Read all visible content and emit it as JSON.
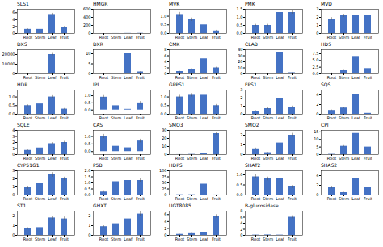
{
  "chart_data": [
    {
      "type": "bar",
      "title": "SLS1",
      "categories": [
        "Root",
        "Stem",
        "Leaf",
        "Fruit"
      ],
      "values": [
        1.2,
        1.2,
        5.5,
        1.8
      ],
      "errors": [
        0.15,
        0.15,
        0.35,
        0.25
      ],
      "color": "#4472c4",
      "ylim": [
        0,
        7
      ],
      "yticks": [
        0,
        2,
        4,
        6
      ],
      "grid": false
    },
    {
      "type": "bar",
      "title": "HMGR",
      "categories": [
        "Root",
        "Stem",
        "Leaf",
        "Fruit"
      ],
      "values": [
        0.05,
        1.0,
        3.2,
        5.0
      ],
      "errors": [
        0.02,
        0.12,
        0.25,
        0.35
      ],
      "color": "#4472c4",
      "ylim": [
        0,
        600
      ],
      "yticks": [
        0,
        200,
        400,
        600
      ],
      "grid": false
    },
    {
      "type": "bar",
      "title": "MVK",
      "categories": [
        "Root",
        "Stem",
        "Leaf",
        "Fruit"
      ],
      "values": [
        1.1,
        0.8,
        0.5,
        0.15
      ],
      "errors": [
        0.12,
        0.1,
        0.06,
        0.04
      ],
      "color": "#4472c4",
      "ylim": [
        0,
        1.4
      ],
      "yticks": [
        {
          "value": 0,
          "label": "0.0"
        },
        0.5,
        {
          "value": 1,
          "label": "1.0"
        }
      ],
      "grid": false
    },
    {
      "type": "bar",
      "title": "PMK",
      "categories": [
        "Root",
        "Stem",
        "Leaf",
        "Fruit"
      ],
      "values": [
        0.5,
        0.5,
        1.3,
        1.3
      ],
      "errors": [
        0.07,
        0.07,
        0.1,
        0.1
      ],
      "color": "#4472c4",
      "ylim": [
        0,
        1.5
      ],
      "yticks": [
        {
          "value": 0,
          "label": "0.0"
        },
        0.5,
        {
          "value": 1,
          "label": "1.0"
        },
        1.5
      ],
      "grid": false
    },
    {
      "type": "bar",
      "title": "MVD",
      "categories": [
        "Root",
        "Stem",
        "Leaf",
        "Fruit"
      ],
      "values": [
        1.8,
        2.2,
        2.3,
        2.3
      ],
      "errors": [
        0.18,
        0.2,
        0.2,
        0.2
      ],
      "color": "#4472c4",
      "ylim": [
        0,
        3
      ],
      "yticks": [
        0,
        1,
        2,
        3
      ],
      "grid": false
    },
    {
      "type": "bar",
      "title": "DXS",
      "categories": [
        "Root",
        "Stem",
        "Leaf",
        "Fruit"
      ],
      "values": [
        50,
        800,
        20000,
        500
      ],
      "errors": [
        5,
        80,
        1200,
        50
      ],
      "color": "#4472c4",
      "ylim": [
        0,
        25000
      ],
      "yticks": [
        0,
        10000,
        20000
      ],
      "grid": false
    },
    {
      "type": "bar",
      "title": "DXR",
      "categories": [
        "Root",
        "Stem",
        "Leaf",
        "Fruit"
      ],
      "values": [
        0.3,
        0.4,
        10.0,
        1.0
      ],
      "errors": [
        0.05,
        0.06,
        0.7,
        0.15
      ],
      "color": "#4472c4",
      "ylim": [
        0,
        12
      ],
      "yticks": [
        0,
        5,
        10
      ],
      "grid": false
    },
    {
      "type": "bar",
      "title": "CMK",
      "categories": [
        "Root",
        "Stem",
        "Leaf",
        "Fruit"
      ],
      "values": [
        0.8,
        1.5,
        5.0,
        2.0
      ],
      "errors": [
        0.1,
        0.2,
        0.4,
        0.25
      ],
      "color": "#4472c4",
      "ylim": [
        0,
        8
      ],
      "yticks": [
        0,
        2,
        4,
        6,
        8
      ],
      "grid": false
    },
    {
      "type": "bar",
      "title": "CLAB",
      "categories": [
        "Root",
        "Stem",
        "Leaf",
        "Fruit"
      ],
      "values": [
        0.2,
        0.2,
        35.0,
        2.0
      ],
      "errors": [
        0.03,
        0.03,
        2.5,
        0.2
      ],
      "color": "#4472c4",
      "ylim": [
        0,
        40
      ],
      "yticks": [
        0,
        10,
        20,
        30,
        40
      ],
      "grid": false
    },
    {
      "type": "bar",
      "title": "HDS",
      "categories": [
        "Root",
        "Stem",
        "Leaf",
        "Fruit"
      ],
      "values": [
        0.3,
        1.2,
        6.5,
        2.0
      ],
      "errors": [
        0.05,
        0.15,
        0.55,
        0.2
      ],
      "color": "#4472c4",
      "ylim": [
        0,
        9
      ],
      "yticks": [
        {
          "value": 0,
          "label": "0.0"
        },
        2.5,
        {
          "value": 5,
          "label": "5.0"
        },
        7.5
      ],
      "grid": false
    },
    {
      "type": "bar",
      "title": "HDR",
      "categories": [
        "Root",
        "Stem",
        "Leaf",
        "Fruit"
      ],
      "values": [
        0.5,
        0.6,
        1.0,
        0.3
      ],
      "errors": [
        0.05,
        0.07,
        0.08,
        0.04
      ],
      "color": "#4472c4",
      "ylim": [
        0,
        1.4
      ],
      "yticks": [
        {
          "value": 0,
          "label": "0.0"
        },
        0.5,
        {
          "value": 1,
          "label": "1.0"
        }
      ],
      "grid": false
    },
    {
      "type": "bar",
      "title": "IPI",
      "categories": [
        "Root",
        "Stem",
        "Leaf",
        "Fruit"
      ],
      "values": [
        0.9,
        0.3,
        0.05,
        0.5
      ],
      "errors": [
        0.12,
        0.08,
        0.02,
        0.1
      ],
      "color": "#4472c4",
      "ylim": [
        -0.3,
        1.4
      ],
      "yticks": [
        {
          "value": 0,
          "label": "0.0"
        },
        0.5,
        {
          "value": 1,
          "label": "1.0"
        }
      ],
      "grid": false
    },
    {
      "type": "bar",
      "title": "GPPS1",
      "categories": [
        "Root",
        "Stem",
        "Leaf",
        "Fruit"
      ],
      "values": [
        1.0,
        1.1,
        1.1,
        0.5
      ],
      "errors": [
        0.1,
        0.1,
        0.12,
        0.07
      ],
      "color": "#4472c4",
      "ylim": [
        0,
        1.4
      ],
      "yticks": [
        {
          "value": 0,
          "label": "0.0"
        },
        0.5,
        {
          "value": 1,
          "label": "1.0"
        }
      ],
      "grid": false
    },
    {
      "type": "bar",
      "title": "FPS1",
      "categories": [
        "Root",
        "Stem",
        "Leaf",
        "Fruit"
      ],
      "values": [
        0.4,
        0.7,
        2.0,
        0.9
      ],
      "errors": [
        0.06,
        0.1,
        0.2,
        0.12
      ],
      "color": "#4472c4",
      "ylim": [
        0,
        3
      ],
      "yticks": [
        0,
        1,
        2,
        3
      ],
      "grid": false
    },
    {
      "type": "bar",
      "title": "SQS",
      "categories": [
        "Root",
        "Stem",
        "Leaf",
        "Fruit"
      ],
      "values": [
        0.8,
        1.3,
        4.0,
        0.2
      ],
      "errors": [
        0.1,
        0.15,
        0.4,
        0.04
      ],
      "color": "#4472c4",
      "ylim": [
        0,
        5
      ],
      "yticks": [
        0,
        2,
        4
      ],
      "grid": false
    },
    {
      "type": "bar",
      "title": "SQLE",
      "categories": [
        "Root",
        "Stem",
        "Leaf",
        "Fruit"
      ],
      "values": [
        0.7,
        1.1,
        1.8,
        2.0
      ],
      "errors": [
        0.08,
        0.12,
        0.18,
        0.2
      ],
      "color": "#4472c4",
      "ylim": [
        0,
        4
      ],
      "yticks": [
        0,
        1,
        2,
        3,
        4
      ],
      "grid": false
    },
    {
      "type": "bar",
      "title": "CAS",
      "categories": [
        "Root",
        "Stem",
        "Leaf",
        "Fruit"
      ],
      "values": [
        1.0,
        0.35,
        0.25,
        0.7
      ],
      "errors": [
        0.14,
        0.07,
        0.04,
        0.12
      ],
      "color": "#4472c4",
      "ylim": [
        -0.2,
        1.4
      ],
      "yticks": [
        {
          "value": 0,
          "label": "0.0"
        },
        0.5,
        {
          "value": 1,
          "label": "1.0"
        }
      ],
      "grid": false
    },
    {
      "type": "bar",
      "title": "SMO3",
      "categories": [
        "Root",
        "Stem",
        "Leaf",
        "Fruit"
      ],
      "values": [
        0.05,
        0.3,
        1.0,
        26.0
      ],
      "errors": [
        0.01,
        0.04,
        0.1,
        2.0
      ],
      "color": "#4472c4",
      "ylim": [
        0,
        30
      ],
      "yticks": [
        0,
        10,
        20,
        30
      ],
      "grid": false
    },
    {
      "type": "bar",
      "title": "SMO2",
      "categories": [
        "Root",
        "Stem",
        "Leaf",
        "Fruit"
      ],
      "values": [
        0.6,
        0.2,
        1.2,
        2.0
      ],
      "errors": [
        0.08,
        0.03,
        0.14,
        0.2
      ],
      "color": "#4472c4",
      "ylim": [
        0,
        2.5
      ],
      "yticks": [
        0,
        1,
        2
      ],
      "grid": false
    },
    {
      "type": "bar",
      "title": "CPI",
      "categories": [
        "Root",
        "Stem",
        "Leaf",
        "Fruit"
      ],
      "values": [
        0.2,
        5.5,
        14.0,
        5.0
      ],
      "errors": [
        0.03,
        0.5,
        1.0,
        0.5
      ],
      "color": "#4472c4",
      "ylim": [
        0,
        16
      ],
      "yticks": [
        0,
        5,
        10,
        15
      ],
      "grid": false
    },
    {
      "type": "bar",
      "title": "CYP51G1",
      "categories": [
        "Root",
        "Stem",
        "Leaf",
        "Fruit"
      ],
      "values": [
        0.9,
        1.4,
        2.5,
        2.0
      ],
      "errors": [
        0.18,
        0.2,
        0.28,
        0.22
      ],
      "color": "#4472c4",
      "ylim": [
        0,
        3
      ],
      "yticks": [
        0,
        1,
        2,
        3
      ],
      "grid": false
    },
    {
      "type": "bar",
      "title": "P5B",
      "categories": [
        "Root",
        "Stem",
        "Leaf",
        "Fruit"
      ],
      "values": [
        0.25,
        1.1,
        1.2,
        1.2
      ],
      "errors": [
        0.04,
        0.14,
        0.15,
        0.15
      ],
      "color": "#4472c4",
      "ylim": [
        0,
        2
      ],
      "yticks": [
        {
          "value": 0,
          "label": "0.0"
        },
        0.5,
        {
          "value": 1,
          "label": "1.0"
        },
        1.5,
        {
          "value": 2,
          "label": "2.0"
        }
      ],
      "grid": false
    },
    {
      "type": "bar",
      "title": "HDPS",
      "categories": [
        "Root",
        "Stem",
        "Leaf",
        "Fruit"
      ],
      "values": [
        1.0,
        1.0,
        45.0,
        0.2
      ],
      "errors": [
        0.1,
        0.1,
        5.0,
        0.03
      ],
      "color": "#4472c4",
      "ylim": [
        0,
        100
      ],
      "yticks": [
        0,
        25,
        50,
        75,
        100
      ],
      "grid": false
    },
    {
      "type": "bar",
      "title": "SHAT2",
      "categories": [
        "Root",
        "Stem",
        "Leaf",
        "Fruit"
      ],
      "values": [
        0.9,
        0.8,
        0.8,
        0.4
      ],
      "errors": [
        0.1,
        0.09,
        0.1,
        0.07
      ],
      "color": "#4472c4",
      "ylim": [
        0,
        1.2
      ],
      "yticks": [
        {
          "value": 0,
          "label": "0.0"
        },
        0.5,
        {
          "value": 1,
          "label": "1.0"
        }
      ],
      "grid": false
    },
    {
      "type": "bar",
      "title": "SHAS2",
      "categories": [
        "Root",
        "Stem",
        "Leaf",
        "Fruit"
      ],
      "values": [
        1.5,
        0.5,
        3.5,
        1.5
      ],
      "errors": [
        0.2,
        0.08,
        0.4,
        0.2
      ],
      "color": "#4472c4",
      "ylim": [
        0,
        5
      ],
      "yticks": [
        0,
        2,
        4
      ],
      "grid": false
    },
    {
      "type": "bar",
      "title": "ST1",
      "categories": [
        "Root",
        "Stem",
        "Leaf",
        "Fruit"
      ],
      "values": [
        0.7,
        0.8,
        1.8,
        1.7
      ],
      "errors": [
        0.09,
        0.1,
        0.2,
        0.2
      ],
      "color": "#4472c4",
      "ylim": [
        0,
        2.5
      ],
      "yticks": [
        0,
        1,
        2
      ],
      "grid": false
    },
    {
      "type": "bar",
      "title": "GHXT",
      "categories": [
        "Root",
        "Stem",
        "Leaf",
        "Fruit"
      ],
      "values": [
        0.9,
        1.2,
        1.7,
        2.2
      ],
      "errors": [
        0.1,
        0.14,
        0.18,
        0.22
      ],
      "color": "#4472c4",
      "ylim": [
        0,
        2.5
      ],
      "yticks": [
        0,
        1,
        2
      ],
      "grid": false
    },
    {
      "type": "bar",
      "title": "UGT8085",
      "categories": [
        "Root",
        "Stem",
        "Leaf",
        "Fruit"
      ],
      "values": [
        0.3,
        0.5,
        0.9,
        5.5
      ],
      "errors": [
        0.04,
        0.07,
        0.1,
        0.5
      ],
      "color": "#4472c4",
      "ylim": [
        0,
        7
      ],
      "yticks": [
        0,
        2,
        4,
        6
      ],
      "grid": false
    },
    {
      "type": "bar",
      "title": "B-glucosidase",
      "categories": [
        "Root",
        "Stem",
        "Leaf",
        "Fruit"
      ],
      "values": [
        0.1,
        0.15,
        0.1,
        6.0
      ],
      "errors": [
        0.02,
        0.02,
        0.02,
        0.5
      ],
      "color": "#4472c4",
      "ylim": [
        0,
        8
      ],
      "yticks": [
        0,
        2,
        4,
        6,
        8
      ],
      "grid": false
    }
  ]
}
